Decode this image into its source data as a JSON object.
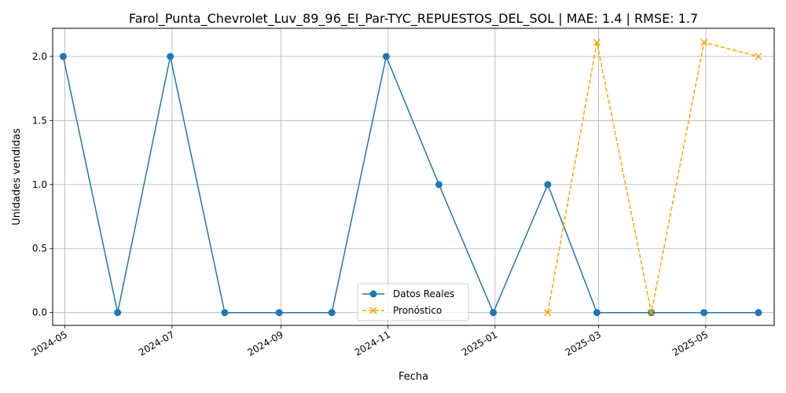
{
  "chart_data": {
    "type": "line",
    "title": "Farol_Punta_Chevrolet_Luv_89_96_El_Par-TYC_REPUESTOS_DEL_SOL | MAE: 1.4 | RMSE: 1.7",
    "xlabel": "Fecha",
    "ylabel": "Unidades vendidas",
    "x_ticks": [
      "2024-05",
      "2024-07",
      "2024-09",
      "2024-11",
      "2025-01",
      "2025-03",
      "2025-05"
    ],
    "y_ticks": [
      "0.0",
      "0.5",
      "1.0",
      "1.5",
      "2.0"
    ],
    "ylim": [
      -0.1,
      2.22
    ],
    "xlim": [
      "2024-04-24",
      "2025-06-09"
    ],
    "grid": true,
    "legend_position": "lower center",
    "series": [
      {
        "name": "Datos Reales",
        "color": "#1f77b4",
        "style": "solid",
        "marker": "circle",
        "x": [
          "2024-04-30",
          "2024-05-31",
          "2024-06-30",
          "2024-07-31",
          "2024-08-31",
          "2024-09-30",
          "2024-10-31",
          "2024-11-30",
          "2024-12-31",
          "2025-01-31",
          "2025-02-28",
          "2025-03-31",
          "2025-04-30",
          "2025-05-31"
        ],
        "values": [
          2,
          0,
          2,
          0,
          0,
          0,
          2,
          1,
          0,
          1,
          0,
          0,
          0,
          0
        ]
      },
      {
        "name": "Pronóstico",
        "color": "#ffa500",
        "style": "dashed",
        "marker": "x",
        "x": [
          "2025-01-31",
          "2025-02-28",
          "2025-03-31",
          "2025-04-30",
          "2025-05-31"
        ],
        "values": [
          0.0,
          2.11,
          0.0,
          2.11,
          2.0
        ]
      }
    ]
  }
}
